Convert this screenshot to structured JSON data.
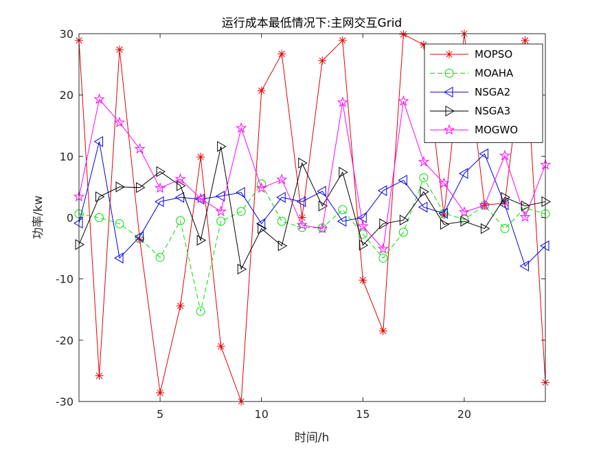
{
  "chart_data": {
    "type": "line",
    "title": "运行成本最低情况下:主网交互Grid",
    "xlabel": "时间/h",
    "ylabel": "功率/kw",
    "xlim": [
      1,
      24
    ],
    "ylim": [
      -30,
      30
    ],
    "xticks": [
      5,
      10,
      15,
      20
    ],
    "yticks": [
      -30,
      -20,
      -10,
      0,
      10,
      20,
      30
    ],
    "grid": false,
    "legend_position": "top-right",
    "x": [
      1,
      2,
      3,
      4,
      5,
      6,
      7,
      8,
      9,
      10,
      11,
      12,
      13,
      14,
      15,
      16,
      17,
      18,
      19,
      20,
      21,
      22,
      23,
      24
    ],
    "series": [
      {
        "name": "MOPSO",
        "color": "#e00000",
        "marker": "asterisk",
        "dash": "solid",
        "values": [
          28.9,
          -25.8,
          27.4,
          -3.6,
          -28.6,
          -14.4,
          9.9,
          -21,
          -30,
          20.7,
          26.7,
          0,
          25.6,
          28.9,
          -10.2,
          -18.5,
          29.9,
          28.2,
          0.4,
          30,
          2,
          2.4,
          28.9,
          -26.9
        ]
      },
      {
        "name": "MOAHA",
        "color": "#00dd00",
        "marker": "circle",
        "dash": "dashed",
        "values": [
          0.6,
          0,
          -1,
          -3.4,
          -6.5,
          -0.5,
          -15.3,
          -0.6,
          1,
          5.5,
          -0.6,
          -1.6,
          -1.7,
          1.3,
          -2.7,
          -6.6,
          -2.4,
          6.5,
          0.7,
          -0.3,
          2,
          -1.8,
          1.6,
          0.6
        ]
      },
      {
        "name": "NSGA2",
        "color": "#0000e0",
        "marker": "triangle-left",
        "dash": "solid",
        "values": [
          -0.9,
          12.4,
          -6.6,
          -3.1,
          2.6,
          3.3,
          3,
          3.5,
          4.1,
          -1,
          3.3,
          2.6,
          4.3,
          -0.6,
          0,
          4.4,
          6.1,
          1.7,
          0.7,
          7.2,
          10.4,
          2.1,
          -7.9,
          -4.6
        ]
      },
      {
        "name": "NSGA3",
        "color": "#000000",
        "marker": "triangle-right",
        "dash": "solid",
        "values": [
          -4.4,
          3.4,
          5,
          4.9,
          7.5,
          5.2,
          -3.7,
          11.6,
          -8.4,
          -1.8,
          -4.6,
          8.9,
          1.9,
          7.4,
          -4.5,
          -1,
          -0.4,
          4.2,
          -1.1,
          -0.6,
          -1.8,
          3.3,
          1.9,
          2.6
        ]
      },
      {
        "name": "MOGWO",
        "color": "#ff00ff",
        "marker": "pentagram",
        "dash": "solid",
        "values": [
          3.4,
          19.3,
          15.5,
          11.2,
          4.8,
          6.3,
          3.1,
          1,
          14.6,
          4.8,
          6.2,
          -1.2,
          -1.8,
          18.8,
          -1.4,
          -5.1,
          19,
          9.1,
          5.6,
          0.9,
          2,
          10.1,
          0.1,
          8.6
        ]
      }
    ]
  }
}
